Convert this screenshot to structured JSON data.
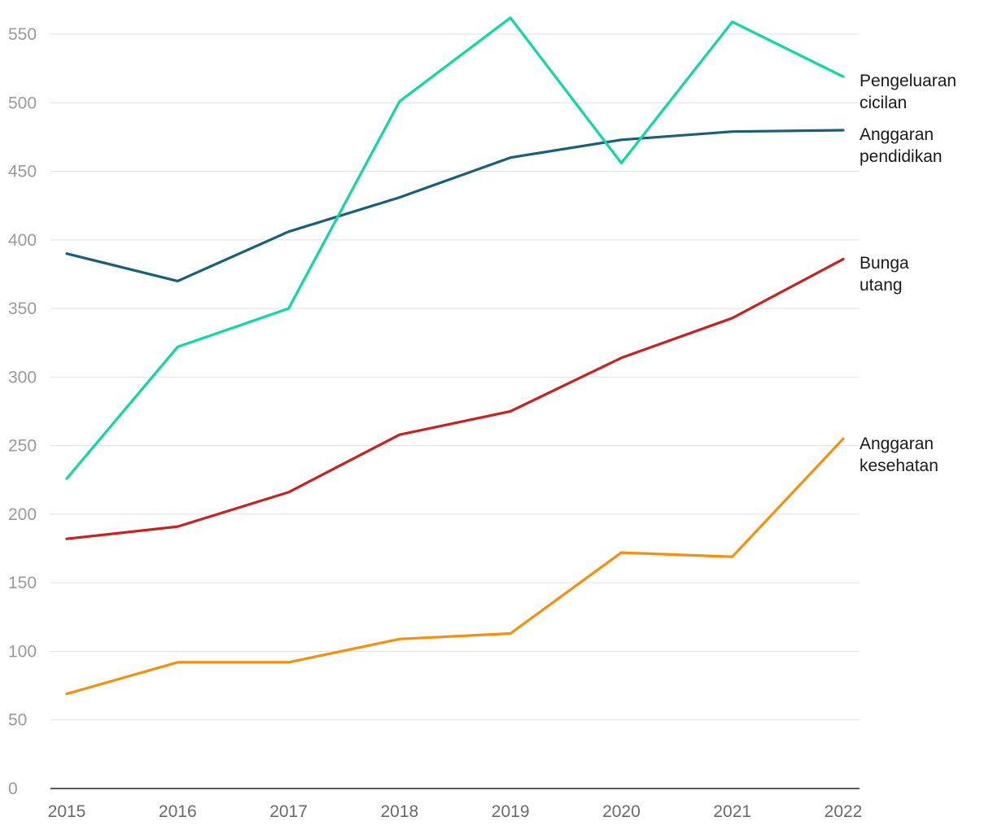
{
  "chart_data": {
    "type": "line",
    "title": "",
    "xlabel": "",
    "ylabel": "",
    "x": [
      "2015",
      "2016",
      "2017",
      "2018",
      "2019",
      "2020",
      "2021",
      "2022"
    ],
    "ylim": [
      0,
      550
    ],
    "yticks": [
      "0",
      "50",
      "100",
      "150",
      "200",
      "250",
      "300",
      "350",
      "400",
      "450",
      "500",
      "550"
    ],
    "grid": true,
    "legend": "direct labels at right end of lines",
    "series": [
      {
        "key": "cicilan",
        "name": "Pengeluaran cicilan",
        "label_lines": [
          "Pengeluaran",
          "cicilan"
        ],
        "color": "#0fd9a1",
        "values": [
          226,
          322,
          350,
          501,
          562,
          456,
          559,
          519
        ]
      },
      {
        "key": "pendidikan",
        "name": "Anggaran pendidikan",
        "label_lines": [
          "Anggaran",
          "pendidikan"
        ],
        "color": "#1a5f78",
        "values": [
          390,
          370,
          406,
          431,
          460,
          473,
          479,
          480
        ]
      },
      {
        "key": "bunga",
        "name": "Bunga utang",
        "label_lines": [
          "Bunga",
          "utang"
        ],
        "color": "#c72222",
        "values": [
          182,
          191,
          216,
          258,
          275,
          314,
          343,
          386
        ]
      },
      {
        "key": "kesehatan",
        "name": "Anggaran kesehatan",
        "label_lines": [
          "Anggaran",
          "kesehatan"
        ],
        "color": "#f5900f",
        "values": [
          69,
          92,
          92,
          109,
          113,
          172,
          169,
          255
        ]
      }
    ]
  }
}
